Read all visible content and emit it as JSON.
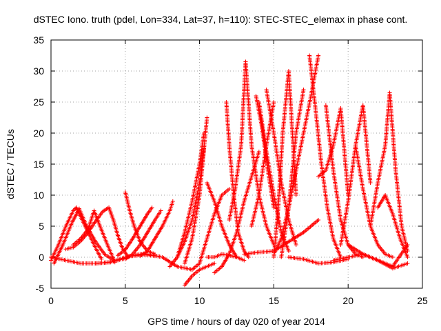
{
  "chart_data": {
    "type": "scatter",
    "title": "dSTEC Iono. truth (pdel, Lon=334, Lat=37, h=110): STEC-STEC_elemax in phase cont.",
    "xlabel": "GPS time / hours of day 020 of year 2014",
    "ylabel": "dSTEC  / TECUs",
    "xlim": [
      0,
      25
    ],
    "ylim": [
      -5,
      35
    ],
    "xticks": [
      0,
      5,
      10,
      15,
      20,
      25
    ],
    "yticks": [
      -5,
      0,
      5,
      10,
      15,
      20,
      25,
      30,
      35
    ],
    "grid": true,
    "marker": "+",
    "color": "#ff0000",
    "series": [
      {
        "x": [
          0,
          0.5,
          1,
          1.5,
          1.7
        ],
        "y": [
          -0.5,
          2,
          5,
          7.5,
          8
        ]
      },
      {
        "x": [
          1.7,
          2,
          2.5,
          3,
          3.4
        ],
        "y": [
          8,
          6.5,
          4,
          1.5,
          -0.3
        ]
      },
      {
        "x": [
          0.2,
          0.8,
          1.4,
          1.9
        ],
        "y": [
          -1,
          2,
          5.5,
          7.8
        ]
      },
      {
        "x": [
          1.9,
          2.4,
          3,
          3.6,
          4.2
        ],
        "y": [
          7.8,
          5,
          2.5,
          0.5,
          -0.5
        ]
      },
      {
        "x": [
          1,
          1.5,
          2,
          2.5,
          3,
          3.5,
          3.9
        ],
        "y": [
          1.3,
          1.6,
          2.6,
          4,
          5.8,
          7.4,
          8
        ]
      },
      {
        "x": [
          3.9,
          4.2,
          4.5,
          4.8,
          5.2
        ],
        "y": [
          8,
          6,
          3.5,
          1.5,
          0
        ]
      },
      {
        "x": [
          1.5,
          2,
          2.5,
          2.9
        ],
        "y": [
          2,
          3,
          4.5,
          7.5
        ]
      },
      {
        "x": [
          2.9,
          3.3,
          3.8,
          4.3
        ],
        "y": [
          7.5,
          5,
          2,
          -0.8
        ]
      },
      {
        "x": [
          0,
          1,
          2,
          3,
          4,
          5
        ],
        "y": [
          0,
          -0.5,
          -1,
          -1,
          -0.8,
          -0.2
        ]
      },
      {
        "x": [
          3,
          4,
          5,
          6,
          7
        ],
        "y": [
          -1,
          -0.8,
          0,
          0.5,
          0.2
        ]
      },
      {
        "x": [
          5,
          5.3,
          5.6,
          6,
          6.5,
          7
        ],
        "y": [
          10.5,
          7.5,
          5,
          2.5,
          1,
          0.5
        ]
      },
      {
        "x": [
          4.5,
          5,
          5.5,
          6,
          6.5,
          6.8
        ],
        "y": [
          0.3,
          1.2,
          3,
          5,
          7,
          8
        ]
      },
      {
        "x": [
          5,
          5.5,
          6,
          6.5,
          7,
          7.4
        ],
        "y": [
          -0.3,
          0.5,
          2,
          4,
          6,
          7.5
        ]
      },
      {
        "x": [
          6,
          6.5,
          7,
          7.5,
          8,
          8.2
        ],
        "y": [
          0.2,
          1,
          3,
          5,
          7.5,
          9
        ]
      },
      {
        "x": [
          5.5,
          6.5,
          7.5,
          8.5,
          9.5
        ],
        "y": [
          0.2,
          0.5,
          0,
          -1.5,
          -2
        ]
      },
      {
        "x": [
          8,
          8.5,
          9,
          9.5,
          10,
          10.3
        ],
        "y": [
          -1.5,
          0,
          2.5,
          6,
          12,
          17.5
        ]
      },
      {
        "x": [
          8.5,
          9,
          9.5,
          10,
          10.3
        ],
        "y": [
          0,
          4,
          9,
          15,
          20
        ]
      },
      {
        "x": [
          9,
          9.5,
          10,
          10.5,
          11
        ],
        "y": [
          -4.5,
          -3,
          -2,
          -1.5,
          -1
        ]
      },
      {
        "x": [
          9.5,
          10,
          10.5,
          11,
          11.5,
          12
        ],
        "y": [
          -2,
          -1,
          3,
          7,
          10,
          11
        ]
      },
      {
        "x": [
          9,
          9.5,
          10,
          10.5
        ],
        "y": [
          -1,
          3,
          10,
          22.5
        ]
      },
      {
        "x": [
          10.5,
          11,
          11.5,
          12,
          12.5
        ],
        "y": [
          12,
          9,
          5,
          2,
          0
        ]
      },
      {
        "x": [
          10.5,
          11,
          11.5,
          12,
          12.5,
          13
        ],
        "y": [
          0,
          0,
          0.5,
          0.3,
          0,
          -0.5
        ]
      },
      {
        "x": [
          11,
          11.5,
          12,
          12.5,
          13,
          13.5,
          14
        ],
        "y": [
          -2.5,
          -1.5,
          0.5,
          4,
          9,
          13,
          17
        ]
      },
      {
        "x": [
          11.8,
          12,
          12.3,
          12.6,
          13,
          13.3
        ],
        "y": [
          25,
          18,
          10,
          4,
          1,
          0
        ]
      },
      {
        "x": [
          12,
          12.4,
          12.8,
          13.1
        ],
        "y": [
          6,
          11,
          18,
          31.5
        ]
      },
      {
        "x": [
          13.1,
          13.5,
          14,
          14.5,
          15
        ],
        "y": [
          31.5,
          18,
          10,
          5,
          2
        ]
      },
      {
        "x": [
          13.5,
          14,
          14.5,
          15
        ],
        "y": [
          5,
          10,
          18,
          25
        ]
      },
      {
        "x": [
          13.8,
          14.2,
          14.6,
          15
        ],
        "y": [
          26,
          21,
          14,
          8
        ]
      },
      {
        "x": [
          14,
          14.5,
          15,
          15.5,
          16
        ],
        "y": [
          25,
          17,
          10,
          4,
          1
        ]
      },
      {
        "x": [
          14.5,
          15,
          15.5,
          16,
          16.5
        ],
        "y": [
          27,
          20,
          12,
          6,
          2
        ]
      },
      {
        "x": [
          15,
          15.3,
          15.6,
          16,
          16.5
        ],
        "y": [
          0,
          8,
          20,
          30,
          10
        ]
      },
      {
        "x": [
          15.5,
          16,
          16.5,
          17
        ],
        "y": [
          0,
          8,
          20,
          27
        ]
      },
      {
        "x": [
          15,
          15.5,
          16,
          16.5,
          17,
          17.5,
          18
        ],
        "y": [
          0.5,
          3,
          8,
          14,
          20,
          26,
          32.5
        ]
      },
      {
        "x": [
          17.4,
          17.8,
          18.2,
          18.6,
          19,
          19.5
        ],
        "y": [
          32.5,
          24,
          15,
          8,
          3,
          0
        ]
      },
      {
        "x": [
          18,
          18.5,
          19,
          19.5,
          20
        ],
        "y": [
          13,
          14,
          18,
          24,
          10
        ]
      },
      {
        "x": [
          18.5,
          19,
          19.5,
          20,
          20.5,
          21
        ],
        "y": [
          24.5,
          14,
          6,
          2,
          0.5,
          0
        ]
      },
      {
        "x": [
          19.5,
          20,
          20.5,
          21,
          21.5
        ],
        "y": [
          2,
          9,
          18,
          24.5,
          12
        ]
      },
      {
        "x": [
          20.5,
          21,
          21.5,
          22,
          22.5,
          23
        ],
        "y": [
          18,
          11,
          5,
          2,
          0.5,
          0
        ]
      },
      {
        "x": [
          21.5,
          22,
          22.5,
          22.8,
          23.2,
          23.6,
          24
        ],
        "y": [
          5,
          12,
          18,
          26.5,
          14,
          5,
          1
        ]
      },
      {
        "x": [
          22,
          22.5,
          23,
          23.5,
          24
        ],
        "y": [
          8,
          10,
          7,
          3,
          0
        ]
      },
      {
        "x": [
          20,
          21,
          22,
          23,
          24
        ],
        "y": [
          2,
          0.5,
          -0.5,
          -1.8,
          -1
        ]
      },
      {
        "x": [
          16,
          17,
          18,
          19,
          20
        ],
        "y": [
          0,
          -0.3,
          -1,
          -0.8,
          -0.3
        ]
      },
      {
        "x": [
          13,
          14,
          15,
          16,
          17,
          18
        ],
        "y": [
          0.5,
          0.8,
          1,
          2.5,
          4,
          6
        ]
      },
      {
        "x": [
          19,
          20,
          21,
          22,
          23,
          24
        ],
        "y": [
          -0.5,
          0,
          0.5,
          -0.5,
          -1.5,
          2
        ]
      }
    ]
  }
}
